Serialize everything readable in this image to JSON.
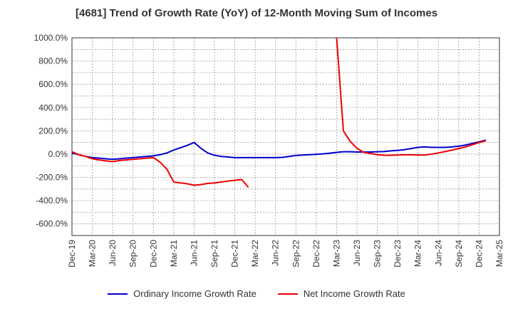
{
  "chart_data": {
    "type": "line",
    "title": "[4681]  Trend of Growth Rate (YoY) of 12-Month Moving Sum of Incomes",
    "xlabel": "",
    "ylabel": "",
    "ylim": [
      -700,
      1000
    ],
    "y_ticks": [
      1000,
      800,
      600,
      400,
      200,
      0,
      -200,
      -400,
      -600
    ],
    "y_tick_labels": [
      "1000.0%",
      "800.0%",
      "600.0%",
      "400.0%",
      "200.0%",
      "0.0%",
      "-200.0%",
      "-400.0%",
      "-600.0%"
    ],
    "x_tick_labels": [
      "Dec-19",
      "Mar-20",
      "Jun-20",
      "Sep-20",
      "Dec-20",
      "Mar-21",
      "Jun-21",
      "Sep-21",
      "Dec-21",
      "Mar-22",
      "Jun-22",
      "Sep-22",
      "Dec-22",
      "Mar-23",
      "Jun-23",
      "Sep-23",
      "Dec-23",
      "Mar-24",
      "Jun-24",
      "Sep-24",
      "Dec-24",
      "Mar-25"
    ],
    "x_months": [
      "2019-12",
      "2020-01",
      "2020-02",
      "2020-03",
      "2020-04",
      "2020-05",
      "2020-06",
      "2020-07",
      "2020-08",
      "2020-09",
      "2020-10",
      "2020-11",
      "2020-12",
      "2021-01",
      "2021-02",
      "2021-03",
      "2021-04",
      "2021-05",
      "2021-06",
      "2021-07",
      "2021-08",
      "2021-09",
      "2021-10",
      "2021-11",
      "2021-12",
      "2022-01",
      "2022-02",
      "2022-03",
      "2022-04",
      "2022-05",
      "2022-06",
      "2022-07",
      "2022-08",
      "2022-09",
      "2022-10",
      "2022-11",
      "2022-12",
      "2023-01",
      "2023-02",
      "2023-03",
      "2023-04",
      "2023-05",
      "2023-06",
      "2023-07",
      "2023-08",
      "2023-09",
      "2023-10",
      "2023-11",
      "2023-12",
      "2024-01",
      "2024-02",
      "2024-03",
      "2024-04",
      "2024-05",
      "2024-06",
      "2024-07",
      "2024-08",
      "2024-09",
      "2024-10",
      "2024-11",
      "2024-12",
      "2025-01",
      "2025-02",
      "2025-03"
    ],
    "grid": true,
    "legend_position": "bottom",
    "series": [
      {
        "name": "Ordinary Income Growth Rate",
        "color": "#0000cc",
        "values": [
          10,
          -5,
          -20,
          -30,
          -35,
          -40,
          -45,
          -40,
          -35,
          -30,
          -25,
          -20,
          -15,
          -5,
          10,
          35,
          55,
          75,
          100,
          50,
          10,
          -10,
          -20,
          -25,
          -30,
          -30,
          -30,
          -30,
          -30,
          -30,
          -30,
          -28,
          -20,
          -12,
          -8,
          -5,
          -2,
          2,
          8,
          15,
          20,
          20,
          18,
          18,
          18,
          20,
          22,
          28,
          32,
          38,
          48,
          58,
          62,
          58,
          58,
          58,
          62,
          68,
          78,
          92,
          105,
          120,
          null,
          null
        ]
      },
      {
        "name": "Net Income Growth Rate",
        "color": "#ee0000",
        "values": [
          20,
          -5,
          -20,
          -40,
          -50,
          -58,
          -65,
          -55,
          -50,
          -45,
          -40,
          -35,
          -30,
          -70,
          -130,
          -240,
          -248,
          -255,
          -268,
          -262,
          -252,
          -248,
          -240,
          -232,
          -225,
          -218,
          -285,
          null,
          null,
          null,
          null,
          null,
          null,
          null,
          null,
          null,
          null,
          null,
          null,
          1000,
          200,
          110,
          50,
          15,
          5,
          -5,
          -10,
          -10,
          -8,
          -6,
          -6,
          -8,
          -8,
          0,
          10,
          22,
          34,
          48,
          62,
          80,
          100,
          115,
          null,
          null
        ]
      }
    ]
  }
}
